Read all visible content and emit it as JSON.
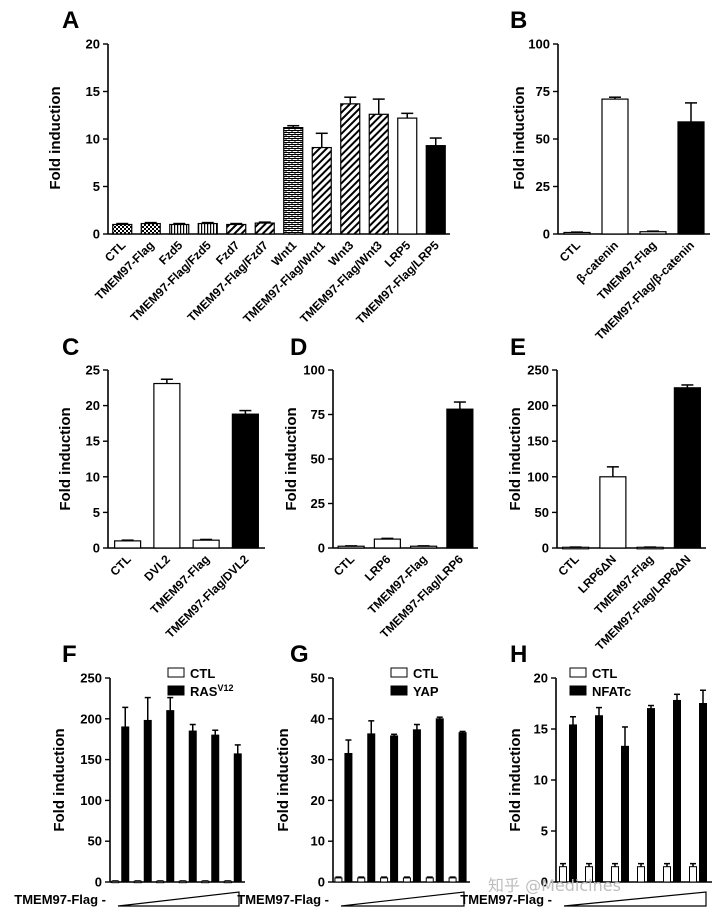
{
  "patterns": {
    "checker": "checker",
    "brick": "brick",
    "diag": "diag",
    "hstripe": "hstripe"
  },
  "chart_data": [
    {
      "id": "A",
      "type": "bar",
      "panel_label": "A",
      "ylabel": "Fold induction",
      "ylim": [
        0,
        20
      ],
      "yticks": [
        "0",
        "5",
        "10",
        "15",
        "20"
      ],
      "categories": [
        "CTL",
        "TMEM97-Flag",
        "Fzd5",
        "TMEM97-Flag/Fzd5",
        "Fzd7",
        "TMEM97-Flag/Fzd7",
        "Wnt1",
        "TMEM97-Flag/Wnt1",
        "Wnt3",
        "TMEM97-Flag/Wnt3",
        "LRP5",
        "TMEM97-Flag/LRP5"
      ],
      "values": [
        1.0,
        1.1,
        1.0,
        1.1,
        1.0,
        1.15,
        11.2,
        9.1,
        13.7,
        12.6,
        12.2,
        9.3
      ],
      "errors": [
        0.1,
        0.1,
        0.1,
        0.1,
        0.1,
        0.1,
        0.2,
        1.5,
        0.7,
        1.6,
        0.5,
        0.8
      ],
      "fills": [
        "checker",
        "checker",
        "hstripe",
        "hstripe",
        "diag",
        "diag",
        "brick",
        "diag",
        "diag",
        "diag",
        "white",
        "black"
      ]
    },
    {
      "id": "B",
      "type": "bar",
      "panel_label": "B",
      "ylabel": "Fold induction",
      "ylim": [
        0,
        100
      ],
      "yticks": [
        "0",
        "25",
        "50",
        "75",
        "100"
      ],
      "categories": [
        "CTL",
        "β-catenin",
        "TMEM97-Flag",
        "TMEM97-Flag/β-catenin"
      ],
      "values": [
        0.8,
        71,
        1.2,
        59
      ],
      "errors": [
        0.2,
        1.0,
        0.3,
        10
      ],
      "fills": [
        "white",
        "white",
        "white",
        "black"
      ]
    },
    {
      "id": "C",
      "type": "bar",
      "panel_label": "C",
      "ylabel": "Fold induction",
      "ylim": [
        0,
        25
      ],
      "yticks": [
        "0",
        "5",
        "10",
        "15",
        "20",
        "25"
      ],
      "categories": [
        "CTL",
        "DVL2",
        "TMEM97-Flag",
        "TMEM97-Flag/DVL2"
      ],
      "values": [
        1.0,
        23.1,
        1.1,
        18.8
      ],
      "errors": [
        0.1,
        0.6,
        0.1,
        0.5
      ],
      "fills": [
        "white",
        "white",
        "white",
        "black"
      ]
    },
    {
      "id": "D",
      "type": "bar",
      "panel_label": "D",
      "ylabel": "Fold induction",
      "ylim": [
        0,
        100
      ],
      "yticks": [
        "0",
        "25",
        "50",
        "75",
        "100"
      ],
      "categories": [
        "CTL",
        "LRP6",
        "TMEM97-Flag",
        "TMEM97-Flag/LRP6"
      ],
      "values": [
        1.0,
        5.0,
        1.0,
        78
      ],
      "errors": [
        0.2,
        0.4,
        0.2,
        4
      ],
      "fills": [
        "white",
        "white",
        "white",
        "black"
      ]
    },
    {
      "id": "E",
      "type": "bar",
      "panel_label": "E",
      "ylabel": "Fold induction",
      "ylim": [
        0,
        250
      ],
      "yticks": [
        "0",
        "50",
        "100",
        "150",
        "200",
        "250"
      ],
      "categories": [
        "CTL",
        "LRP6ΔN",
        "TMEM97-Flag",
        "TMEM97-Flag/LRP6ΔN"
      ],
      "values": [
        1.0,
        100,
        1.0,
        225
      ],
      "errors": [
        0.3,
        14,
        0.3,
        4
      ],
      "fills": [
        "white",
        "white",
        "white",
        "black"
      ]
    },
    {
      "id": "F",
      "type": "bar",
      "panel_label": "F",
      "ylabel": "Fold induction",
      "ylim": [
        0,
        250
      ],
      "yticks": [
        "0",
        "50",
        "100",
        "150",
        "200",
        "250"
      ],
      "series": [
        {
          "name": "CTL",
          "values": [
            1,
            1,
            1,
            1,
            1,
            1
          ],
          "errors": [
            0.3,
            0.3,
            0.3,
            0.3,
            0.3,
            0.3
          ]
        },
        {
          "name": "RAS",
          "name_sup": "V12",
          "values": [
            190,
            198,
            210,
            185,
            180,
            157
          ],
          "errors": [
            24,
            28,
            16,
            8,
            6,
            11
          ]
        }
      ],
      "x_label": "TMEM97-Flag",
      "x_first": "-"
    },
    {
      "id": "G",
      "type": "bar",
      "panel_label": "G",
      "ylabel": "Fold induction",
      "ylim": [
        0,
        50
      ],
      "yticks": [
        "0",
        "10",
        "20",
        "30",
        "40",
        "50"
      ],
      "series": [
        {
          "name": "CTL",
          "values": [
            1,
            1,
            1,
            1,
            1,
            1
          ],
          "errors": [
            0.2,
            0.2,
            0.2,
            0.2,
            0.2,
            0.2
          ]
        },
        {
          "name": "YAP",
          "values": [
            31.5,
            36.3,
            35.8,
            37.3,
            40,
            36.6
          ],
          "errors": [
            3.3,
            3.2,
            0.4,
            1.3,
            0.4,
            0.3
          ]
        }
      ],
      "x_label": "TMEM97-Flag",
      "x_first": "-"
    },
    {
      "id": "H",
      "type": "bar",
      "panel_label": "H",
      "ylabel": "Fold induction",
      "ylim": [
        0,
        20
      ],
      "yticks": [
        "0",
        "5",
        "10",
        "15",
        "20"
      ],
      "series": [
        {
          "name": "CTL",
          "values": [
            1.5,
            1.5,
            1.5,
            1.5,
            1.5,
            1.5
          ],
          "errors": [
            0.3,
            0.3,
            0.3,
            0.3,
            0.3,
            0.3
          ]
        },
        {
          "name": "NFATc",
          "values": [
            15.4,
            16.3,
            13.3,
            17,
            17.8,
            17.5
          ],
          "errors": [
            0.8,
            0.8,
            1.9,
            0.3,
            0.6,
            1.3
          ]
        }
      ],
      "x_label": "TMEM97-Flag",
      "x_first": "-"
    }
  ],
  "watermark": "知乎 @Medicines"
}
